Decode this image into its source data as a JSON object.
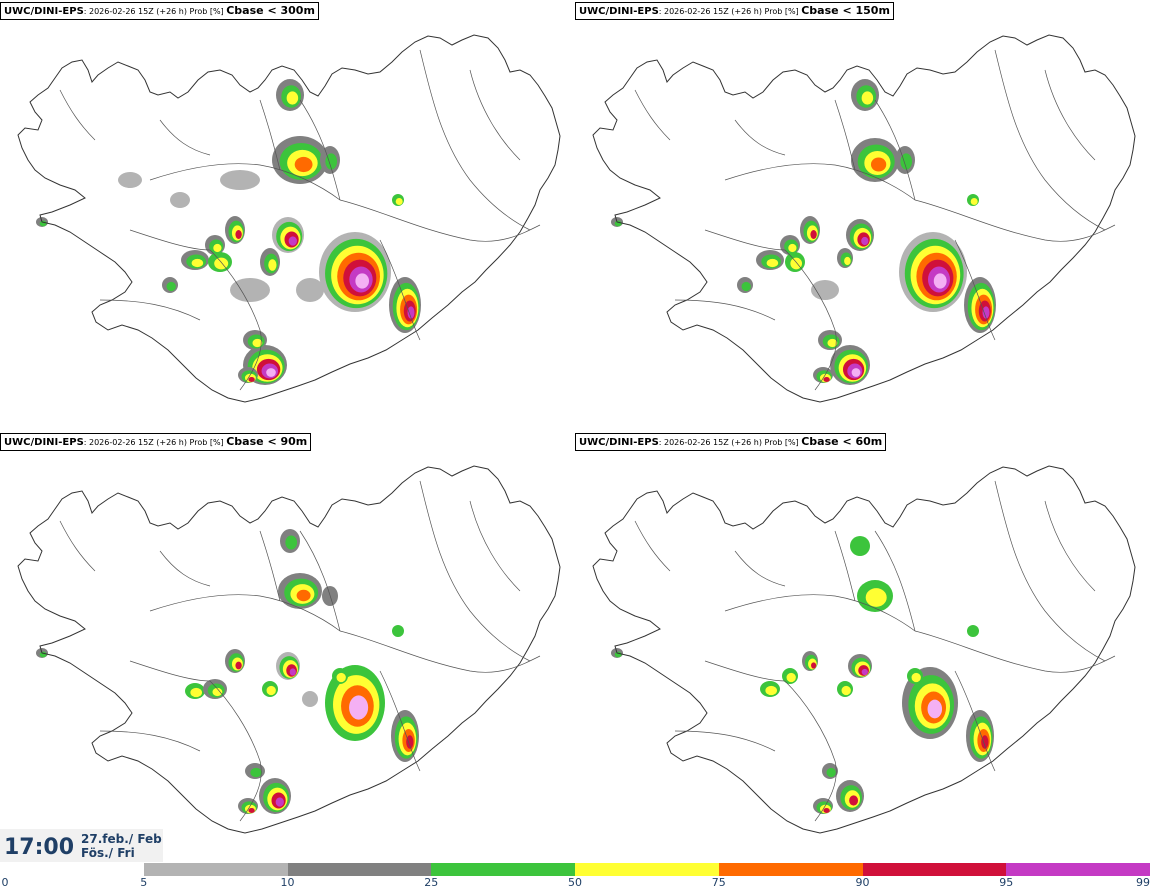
{
  "panels": [
    {
      "model": "UWC/DINI-EPS",
      "meta": ": 2026-02-26 15Z (+26 h) Prob [%] ",
      "param": "Cbase < 300m"
    },
    {
      "model": "UWC/DINI-EPS",
      "meta": ": 2026-02-26 15Z (+26 h) Prob [%] ",
      "param": "Cbase < 150m"
    },
    {
      "model": "UWC/DINI-EPS",
      "meta": ": 2026-02-26 15Z (+26 h) Prob [%] ",
      "param": "Cbase < 90m"
    },
    {
      "model": "UWC/DINI-EPS",
      "meta": ": 2026-02-26 15Z (+26 h) Prob [%] ",
      "param": "Cbase < 60m"
    }
  ],
  "valid_time": {
    "time": "17:00",
    "date_line1": "27.feb./ Feb",
    "date_line2": "Fös./ Fri"
  },
  "colorbar": {
    "ticks": [
      "0",
      "5",
      "10",
      "25",
      "50",
      "75",
      "90",
      "95",
      "99"
    ],
    "colors": [
      "#ffffff",
      "#b3b3b3",
      "#808080",
      "#3cc43c",
      "#ffff33",
      "#ff6a00",
      "#d0103a",
      "#c43ac4",
      "#f4b0f4"
    ]
  }
}
